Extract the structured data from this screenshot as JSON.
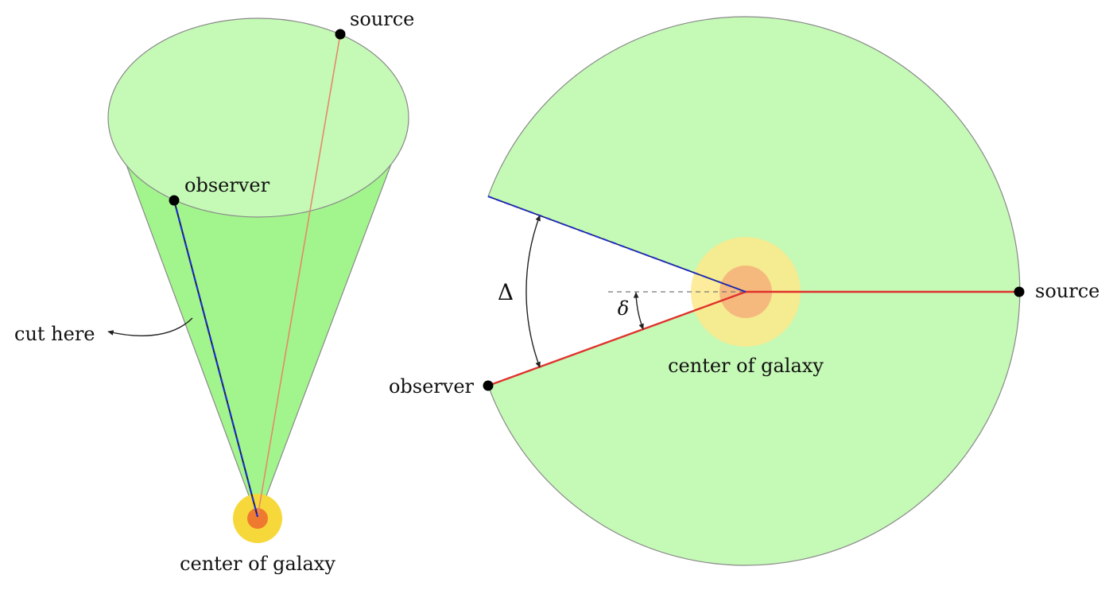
{
  "left_diagram": {
    "labels": {
      "source": "source",
      "observer": "observer",
      "cut": "cut here",
      "center": "center of galaxy"
    }
  },
  "right_diagram": {
    "labels": {
      "source": "source",
      "observer": "observer",
      "center": "center of galaxy",
      "big_angle": "Δ",
      "small_angle": "δ"
    }
  },
  "colors": {
    "cone_side": "#a2f58c",
    "cone_top": "#c5f9b6",
    "disk": "#c5f9b6",
    "disk_outline": "#8a8a8a",
    "red_line": "#e0312c",
    "blue_dash": "#1f2fd0",
    "halo_outer": "#fde98a",
    "halo_inner": "#f4b07a",
    "core_left_outer": "#f7d83a",
    "core_left_inner": "#ef7a2f"
  }
}
